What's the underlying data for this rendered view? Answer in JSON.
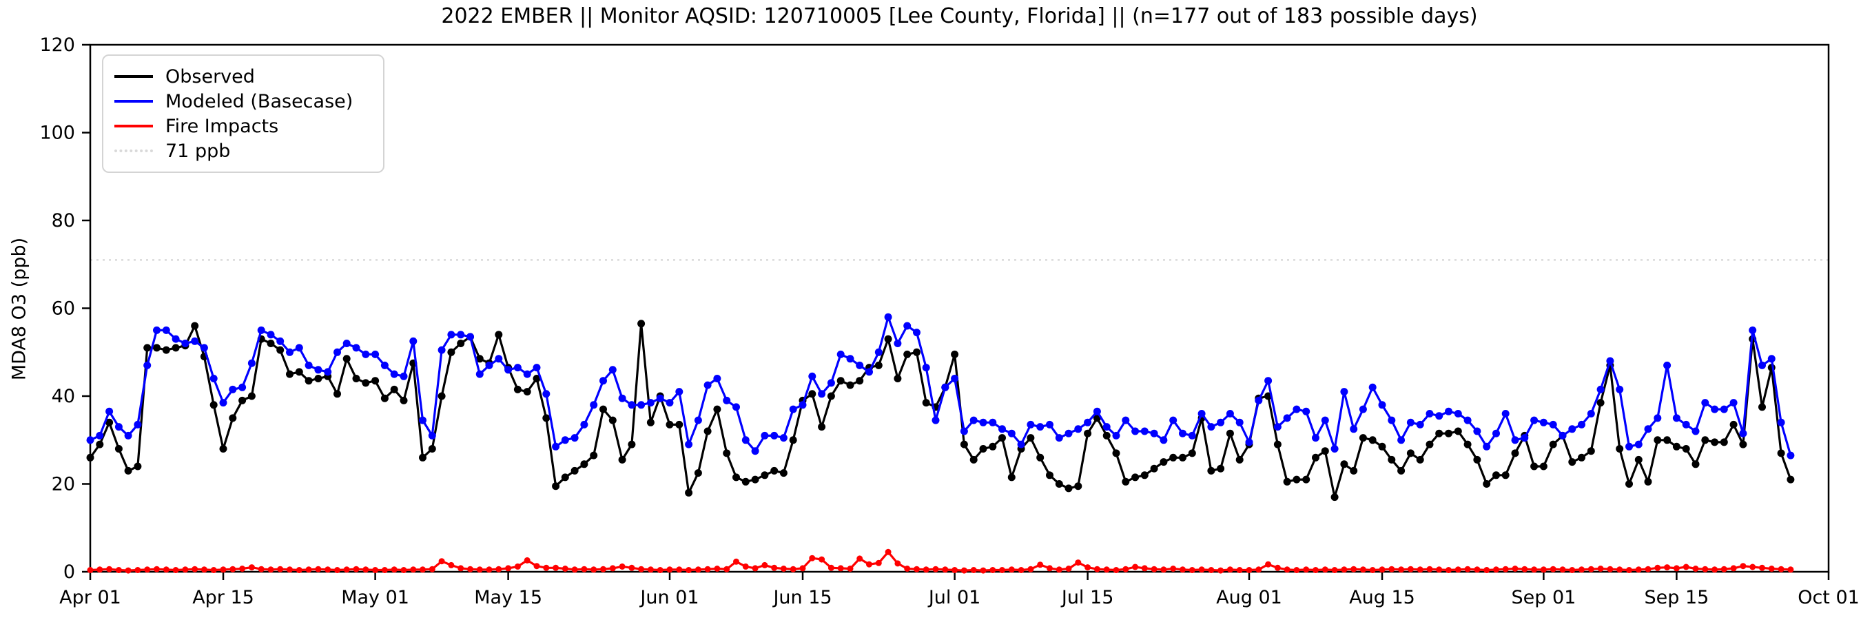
{
  "title": "2022 EMBER || Monitor AQSID: 120710005 [Lee County, Florida] || (n=177 out of 183 possible days)",
  "axes": {
    "ylabel": "MDA8 O3 (ppb)",
    "ylim": [
      0,
      120
    ],
    "yticks": [
      0,
      20,
      40,
      60,
      80,
      100,
      120
    ],
    "xtick_labels": [
      "Apr 01",
      "Apr 15",
      "May 01",
      "May 15",
      "Jun 01",
      "Jun 15",
      "Jul 01",
      "Jul 15",
      "Aug 01",
      "Aug 15",
      "Sep 01",
      "Sep 15",
      "Oct 01"
    ],
    "xtick_days": [
      0,
      14,
      30,
      44,
      61,
      75,
      91,
      105,
      122,
      136,
      153,
      167,
      183
    ],
    "grid": false
  },
  "legend": {
    "position": "upper-left",
    "items": [
      {
        "label": "Observed",
        "color": "#000000",
        "style": "solid"
      },
      {
        "label": "Modeled (Basecase)",
        "color": "#0000ff",
        "style": "solid"
      },
      {
        "label": "Fire Impacts",
        "color": "#ff0000",
        "style": "solid"
      },
      {
        "label": "71 ppb",
        "color": "#d9d9d9",
        "style": "dotted"
      }
    ]
  },
  "chart_data": {
    "type": "line",
    "title": "2022 EMBER || Monitor AQSID: 120710005 [Lee County, Florida] || (n=177 out of 183 possible days)",
    "xlabel": "",
    "ylabel": "MDA8 O3 (ppb)",
    "ylim": [
      0,
      120
    ],
    "x_start_date": "2022-04-01",
    "x_end_date": "2022-10-01",
    "n_days": 183,
    "n_observed": 177,
    "threshold": {
      "value": 71,
      "label": "71 ppb",
      "color": "#d9d9d9",
      "linestyle": "dotted"
    },
    "legend_position": "upper-left",
    "series": [
      {
        "name": "Observed",
        "color": "#000000",
        "marker": "circle",
        "marker_radius": 5.5,
        "values": [
          26,
          29,
          34,
          28,
          23,
          24,
          51,
          51,
          50.5,
          51,
          51.5,
          56,
          49,
          38,
          28,
          35,
          39,
          40,
          53,
          52,
          50.5,
          45,
          45.5,
          43.5,
          44,
          44.5,
          40.5,
          48.5,
          44,
          43,
          43.5,
          39.5,
          41.5,
          39,
          47.5,
          26,
          28,
          40,
          50,
          52,
          53.5,
          48.5,
          47.5,
          54,
          46.5,
          41.5,
          41,
          44,
          35,
          19.5,
          21.5,
          23,
          24.5,
          26.5,
          37,
          34.5,
          25.5,
          29,
          56.5,
          34,
          40,
          33.5,
          33.5,
          18,
          22.5,
          32,
          37,
          27,
          21.5,
          20.5,
          21,
          22,
          23,
          22.5,
          30,
          39,
          40.5,
          33,
          40,
          43.5,
          42.5,
          43.5,
          46.5,
          47,
          53,
          44,
          49.5,
          50,
          38.5,
          37.5,
          42,
          49.5,
          29,
          25.5,
          28,
          28.5,
          30.5,
          21.5,
          28,
          30.5,
          26,
          22,
          20,
          19,
          19.5,
          31.5,
          35,
          31,
          27,
          20.5,
          21.5,
          22,
          23.5,
          25,
          26,
          26,
          27,
          35,
          23,
          23.5,
          31.5,
          25.5,
          29,
          39.5,
          40,
          29,
          20.5,
          21,
          21,
          26,
          27.5,
          17,
          24.5,
          23,
          30.5,
          30,
          28.5,
          25.5,
          23,
          27,
          25.5,
          29,
          31.5,
          31.5,
          32,
          29,
          25.5,
          20,
          22,
          22,
          27,
          31,
          24,
          24,
          29,
          31,
          25,
          26,
          27.5,
          38.5,
          47,
          28,
          20,
          25.5,
          20.5,
          30,
          30,
          28.5,
          28,
          24.5,
          30,
          29.5,
          29.5,
          33.5,
          29,
          53,
          37.5,
          46.5,
          27,
          21,
          null,
          null,
          null
        ]
      },
      {
        "name": "Modeled (Basecase)",
        "color": "#0000ff",
        "marker": "circle",
        "marker_radius": 5.5,
        "values": [
          30,
          31,
          36.5,
          33,
          31,
          33.5,
          47,
          55,
          55,
          53,
          52,
          52.5,
          51,
          44,
          38.5,
          41.5,
          42,
          47.5,
          55,
          54,
          52.5,
          50,
          51,
          47,
          46,
          45.5,
          50,
          52,
          51,
          49.5,
          49.5,
          47,
          45,
          44.5,
          52.5,
          34.5,
          31,
          50.5,
          54,
          54,
          53.5,
          45,
          47,
          48.5,
          46,
          46.5,
          45,
          46.5,
          40.5,
          28.5,
          30,
          30.5,
          33.5,
          38,
          43.5,
          46,
          39.5,
          38,
          38,
          38.5,
          39.5,
          38.5,
          41,
          29,
          34.5,
          42.5,
          44,
          39,
          37.5,
          30,
          27.5,
          31,
          31,
          30.5,
          37,
          38,
          44.5,
          40.5,
          43,
          49.5,
          48.5,
          47,
          45.5,
          50,
          58,
          52,
          56,
          54.5,
          46.5,
          34.5,
          42,
          44,
          32,
          34.5,
          34,
          34,
          32.5,
          31.5,
          29,
          33.5,
          33,
          33.5,
          30.5,
          31.5,
          32.5,
          34,
          36.5,
          33,
          31,
          34.5,
          32,
          32,
          31.5,
          30,
          34.5,
          31.5,
          31,
          36,
          33,
          34,
          36,
          34,
          29.5,
          39,
          43.5,
          33,
          35,
          37,
          36.5,
          30.5,
          34.5,
          28,
          41,
          32.5,
          37,
          42,
          38,
          34.5,
          30,
          34,
          33.5,
          36,
          35.5,
          36.5,
          36,
          34.5,
          32,
          28.5,
          31.5,
          36,
          30,
          30.5,
          34.5,
          34,
          33.5,
          31,
          32.5,
          33.5,
          36,
          41.5,
          48,
          41.5,
          28.5,
          29,
          32.5,
          35,
          47,
          35,
          33.5,
          32,
          38.5,
          37,
          37,
          38.5,
          31.5,
          55,
          47,
          48.5,
          34,
          26.5,
          null,
          null,
          null
        ]
      },
      {
        "name": "Fire Impacts",
        "color": "#ff0000",
        "marker": "circle",
        "marker_radius": 4.5,
        "values": [
          0.4,
          0.5,
          0.6,
          0.4,
          0.3,
          0.4,
          0.5,
          0.6,
          0.5,
          0.4,
          0.5,
          0.6,
          0.5,
          0.4,
          0.5,
          0.6,
          0.7,
          1.0,
          0.6,
          0.5,
          0.6,
          0.5,
          0.4,
          0.5,
          0.6,
          0.5,
          0.4,
          0.5,
          0.6,
          0.5,
          0.4,
          0.4,
          0.5,
          0.4,
          0.5,
          0.5,
          0.6,
          2.4,
          1.5,
          0.8,
          0.6,
          0.5,
          0.5,
          0.6,
          0.8,
          1.2,
          2.6,
          1.3,
          0.9,
          0.9,
          0.7,
          0.5,
          0.6,
          0.5,
          0.6,
          0.8,
          1.2,
          0.9,
          0.6,
          0.5,
          0.4,
          0.5,
          0.5,
          0.4,
          0.5,
          0.6,
          0.7,
          0.6,
          2.3,
          1.2,
          0.8,
          1.5,
          0.9,
          0.7,
          0.6,
          0.8,
          3.1,
          2.8,
          0.9,
          0.8,
          0.7,
          3.0,
          1.7,
          2.0,
          4.5,
          1.9,
          0.7,
          0.6,
          0.5,
          0.6,
          0.5,
          0.4,
          0.3,
          0.4,
          0.3,
          0.4,
          0.4,
          0.5,
          0.4,
          0.6,
          1.6,
          0.8,
          0.5,
          0.7,
          2.1,
          1.0,
          0.6,
          0.5,
          0.4,
          0.6,
          1.1,
          0.8,
          0.6,
          0.5,
          0.7,
          0.5,
          0.4,
          0.5,
          0.4,
          0.3,
          0.5,
          0.4,
          0.4,
          0.5,
          1.7,
          0.9,
          0.5,
          0.4,
          0.5,
          0.4,
          0.5,
          0.4,
          0.5,
          0.6,
          0.5,
          0.4,
          0.5,
          0.6,
          0.5,
          0.6,
          0.5,
          0.6,
          0.5,
          0.4,
          0.5,
          0.6,
          0.5,
          0.4,
          0.5,
          0.6,
          0.7,
          0.6,
          0.5,
          0.5,
          0.6,
          0.5,
          0.4,
          0.5,
          0.6,
          0.7,
          0.6,
          0.5,
          0.4,
          0.5,
          0.6,
          0.9,
          1.0,
          0.8,
          1.1,
          0.7,
          0.6,
          0.5,
          0.6,
          0.8,
          1.3,
          1.1,
          0.9,
          0.7,
          0.6,
          0.5,
          null,
          null,
          null
        ]
      }
    ]
  }
}
